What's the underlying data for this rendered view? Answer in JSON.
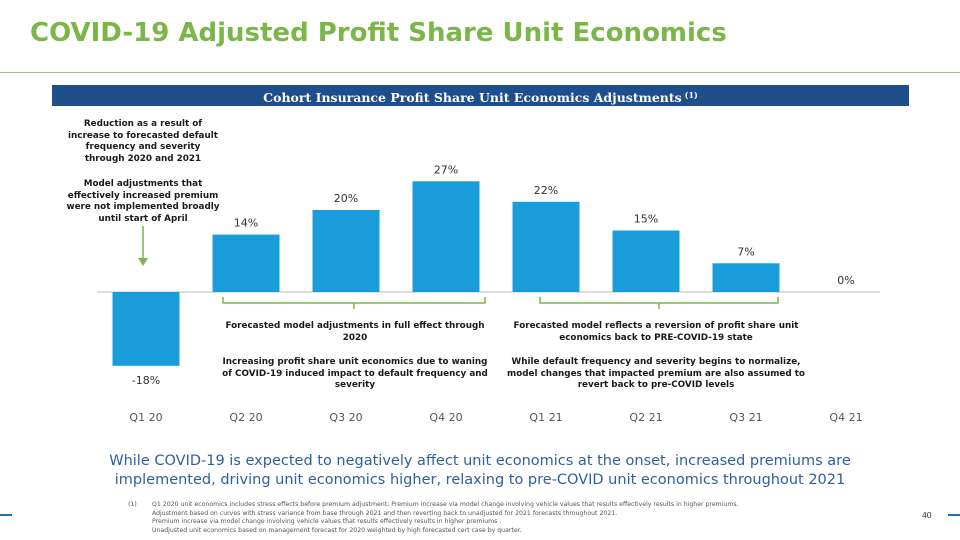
{
  "header": {
    "title": "COVID-19 Adjusted Profit Share Unit Economics",
    "banner": "Cohort Insurance Profit Share Unit Economics Adjustments",
    "banner_ref": "(1)"
  },
  "annotations": {
    "left_top": [
      "Reduction as a result of",
      "increase to forecasted default",
      "frequency and severity",
      "through 2020 and 2021"
    ],
    "left_bottom": [
      "Model adjustments that",
      "effectively increased premium",
      "were not implemented broadly",
      "until start of April"
    ],
    "mid_top": [
      "Forecasted model adjustments in full effect through",
      "2020"
    ],
    "mid_bottom": [
      "Increasing profit share unit economics due to waning",
      "of COVID-19 induced impact to default frequency and",
      "severity"
    ],
    "right_top": [
      "Forecasted model reflects a reversion of profit share unit",
      "economics back to PRE-COVID-19 state"
    ],
    "right_bottom": [
      "While default frequency and severity begins to normalize,",
      "model changes that impacted premium are also assumed to",
      "revert back to pre-COVID levels"
    ]
  },
  "summary": [
    "While COVID-19 is expected to negatively affect unit economics at the onset, increased premiums are",
    "implemented, driving unit economics higher, relaxing to pre-COVID unit economics throughout 2021"
  ],
  "footnote": {
    "mark": "(1)",
    "lines": [
      "Q1 2020 unit economics includes stress effects before premium adjustment; Premium increase via model change involving vehicle values that results effectively results in higher premiums.",
      "Adjustment based on curves with stress variance from base through 2021 and then reverting back to unadjusted for 2021 forecasts throughout 2021.",
      "Premium increase via model change involving vehicle values that results effectively results in higher premiums .",
      "Unadjusted unit economics based on management forecast for 2020 weighted by high forecasted cert case by quarter."
    ]
  },
  "page_number": "40",
  "colors": {
    "title": "#7ab648",
    "banner": "#1f4e8c",
    "bar": "#1a9cdb",
    "bracket": "#7ab648",
    "summary": "#2e5f9e"
  },
  "chart_data": {
    "type": "bar",
    "categories": [
      "Q1 20",
      "Q2 20",
      "Q3 20",
      "Q4 20",
      "Q1 21",
      "Q2 21",
      "Q3 21",
      "Q4 21"
    ],
    "values": [
      -18,
      14,
      20,
      27,
      22,
      15,
      7,
      0
    ],
    "labels": [
      "-18%",
      "14%",
      "20%",
      "27%",
      "22%",
      "15%",
      "7%",
      "0%"
    ],
    "unit": "%",
    "ylim": [
      -20,
      30
    ],
    "grid": false,
    "legend": "none"
  }
}
